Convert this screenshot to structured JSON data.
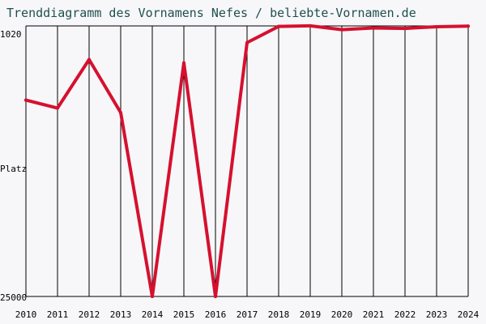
{
  "chart_data": {
    "type": "line",
    "title": "Trenddiagramm des Vornamens Nefes / beliebte-Vornamen.de",
    "xlabel": "",
    "ylabel": "Platz",
    "y_axis_inverted": true,
    "ylim": [
      25000,
      1020
    ],
    "y_tick_labels": [
      "1020",
      "25000"
    ],
    "categories": [
      "2010",
      "2011",
      "2012",
      "2013",
      "2014",
      "2015",
      "2016",
      "2017",
      "2018",
      "2019",
      "2020",
      "2021",
      "2022",
      "2023",
      "2024"
    ],
    "series": [
      {
        "name": "",
        "color": "#d6102f",
        "values": [
          7600,
          8300,
          4000,
          8700,
          25000,
          4300,
          25000,
          2500,
          1060,
          1010,
          1350,
          1200,
          1240,
          1090,
          1040
        ]
      }
    ],
    "grid": "vertical",
    "line_color": "#d6102f",
    "title_color": "#1f4f4f",
    "background_color": "#f7f7fa"
  }
}
